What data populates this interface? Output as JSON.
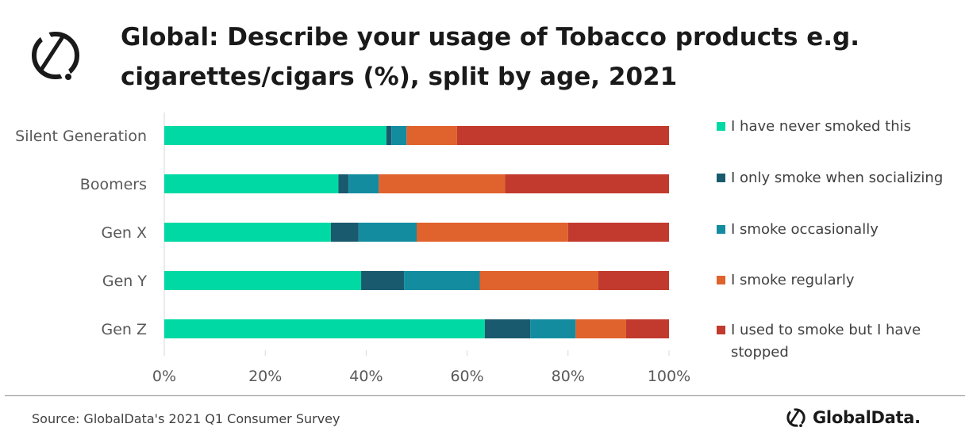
{
  "header": {
    "title": "Global: Describe your usage of Tobacco products e.g. cigarettes/cigars (%), split by age, 2021"
  },
  "footer": {
    "source": "Source: GlobalData's 2021 Q1 Consumer Survey",
    "brand": "GlobalData."
  },
  "colors": {
    "never": "#00d9a3",
    "socializing": "#1a5a6e",
    "occasionally": "#148ca0",
    "regularly": "#e0622c",
    "stopped": "#c23a2e",
    "title": "#1a1a1a",
    "text": "#404040"
  },
  "chart_data": {
    "type": "bar",
    "orientation": "horizontal",
    "stacked": "percent",
    "categories": [
      "Silent Generation",
      "Boomers",
      "Gen X",
      "Gen Y",
      "Gen Z"
    ],
    "series": [
      {
        "name": "I have never smoked this",
        "color": "#00d9a3",
        "values": [
          44,
          34.5,
          33,
          39,
          63.5
        ]
      },
      {
        "name": "I only smoke when socializing",
        "color": "#1a5a6e",
        "values": [
          1,
          2,
          5.5,
          8.5,
          9
        ]
      },
      {
        "name": "I smoke occasionally",
        "color": "#148ca0",
        "values": [
          3,
          6,
          11.5,
          15,
          9
        ]
      },
      {
        "name": "I smoke regularly",
        "color": "#e0622c",
        "values": [
          10,
          25,
          30,
          23.5,
          10
        ]
      },
      {
        "name": "I used to smoke but I have stopped",
        "color": "#c23a2e",
        "values": [
          42,
          32.5,
          20,
          14,
          8.5
        ]
      }
    ],
    "x_ticks": [
      "0%",
      "20%",
      "40%",
      "60%",
      "80%",
      "100%"
    ],
    "xlim": [
      0,
      100
    ],
    "xlabel": "",
    "ylabel": "",
    "grid": false,
    "legend_position": "right"
  }
}
